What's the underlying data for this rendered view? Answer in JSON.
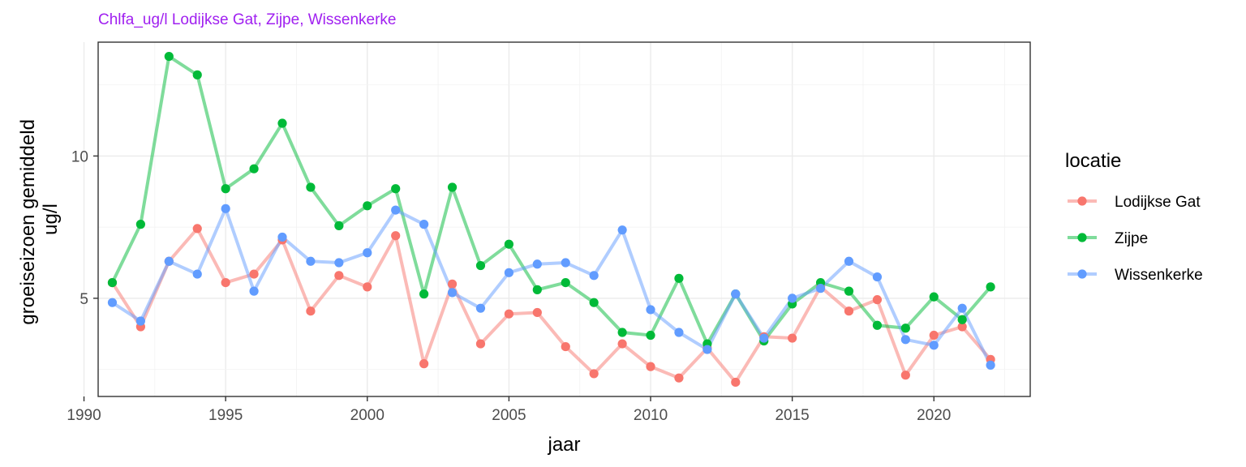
{
  "chart_data": {
    "type": "line",
    "title": "Chlfa_ug/l Lodijkse Gat, Zijpe, Wissenkerke",
    "xlabel": "jaar",
    "ylabel_lines": [
      "groeiseizoen gemiddeld",
      "ug/l"
    ],
    "x": [
      1991,
      1992,
      1993,
      1994,
      1995,
      1996,
      1997,
      1998,
      1999,
      2000,
      2001,
      2002,
      2003,
      2004,
      2005,
      2006,
      2007,
      2008,
      2009,
      2010,
      2011,
      2012,
      2013,
      2014,
      2015,
      2016,
      2017,
      2018,
      2019,
      2020,
      2021,
      2022
    ],
    "x_ticks": [
      1990,
      1995,
      2000,
      2005,
      2010,
      2015,
      2020
    ],
    "x_tick_labels": [
      "1990",
      "1995",
      "2000",
      "2005",
      "2010",
      "2015",
      "2020"
    ],
    "y_ticks": [
      5,
      10
    ],
    "y_tick_labels": [
      "5",
      "10"
    ],
    "xlim": [
      1990.5,
      2023.4
    ],
    "ylim": [
      1.55,
      14.0
    ],
    "grid": true,
    "legend": {
      "title": "locatie",
      "position": "right"
    },
    "series": [
      {
        "name": "Lodijkse Gat",
        "color": "#f8766d",
        "values": [
          5.55,
          4.0,
          6.3,
          7.45,
          5.55,
          5.85,
          7.05,
          4.55,
          5.8,
          5.4,
          7.2,
          2.7,
          5.5,
          3.4,
          4.45,
          4.5,
          3.3,
          2.35,
          3.4,
          2.6,
          2.2,
          3.25,
          2.05,
          3.65,
          3.6,
          5.4,
          4.55,
          4.95,
          2.3,
          3.7,
          4.0,
          2.85
        ]
      },
      {
        "name": "Zijpe",
        "color": "#00ba38",
        "values": [
          5.55,
          7.6,
          13.5,
          12.85,
          8.85,
          9.55,
          11.15,
          8.9,
          7.55,
          8.25,
          8.85,
          5.15,
          8.9,
          6.15,
          6.9,
          5.3,
          5.55,
          4.85,
          3.8,
          3.7,
          5.7,
          3.4,
          5.15,
          3.5,
          4.8,
          5.55,
          5.25,
          4.05,
          3.95,
          5.05,
          4.25,
          5.4
        ]
      },
      {
        "name": "Wissenkerke",
        "color": "#619cff",
        "values": [
          4.85,
          4.2,
          6.3,
          5.85,
          8.15,
          5.25,
          7.15,
          6.3,
          6.25,
          6.6,
          8.1,
          7.6,
          5.2,
          4.65,
          5.9,
          6.2,
          6.25,
          5.8,
          7.4,
          4.6,
          3.8,
          3.2,
          5.15,
          3.6,
          5.0,
          5.35,
          6.3,
          5.75,
          3.55,
          3.35,
          4.65,
          2.65
        ]
      }
    ]
  }
}
